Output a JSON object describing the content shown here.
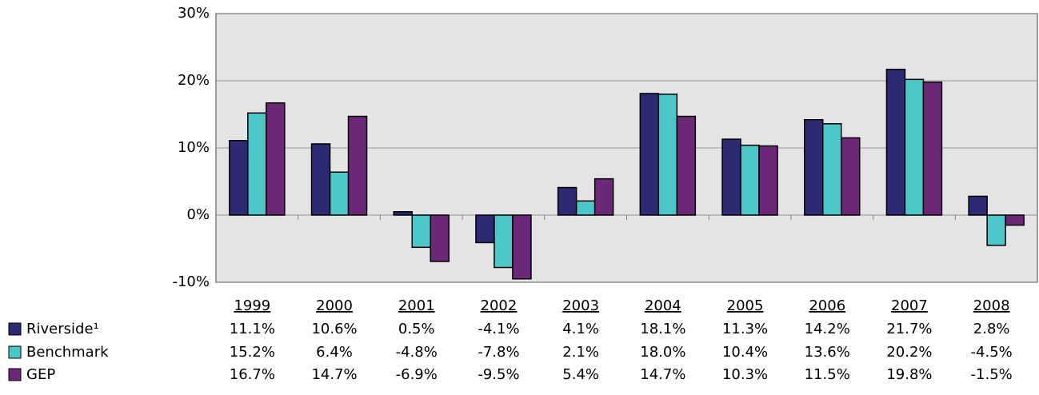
{
  "chart_data": {
    "type": "bar",
    "categories": [
      "1999",
      "2000",
      "2001",
      "2002",
      "2003",
      "2004",
      "2005",
      "2006",
      "2007",
      "2008"
    ],
    "series": [
      {
        "name": "Riverside¹",
        "color": "#2b2a72",
        "values": [
          11.1,
          10.6,
          0.5,
          -4.1,
          4.1,
          18.1,
          11.3,
          14.2,
          21.7,
          2.8
        ],
        "value_labels": [
          "11.1%",
          "10.6%",
          "0.5%",
          "-4.1%",
          "4.1%",
          "18.1%",
          "11.3%",
          "14.2%",
          "21.7%",
          "2.8%"
        ]
      },
      {
        "name": "Benchmark",
        "color": "#4cc6c8",
        "values": [
          15.2,
          6.4,
          -4.8,
          -7.8,
          2.1,
          18.0,
          10.4,
          13.6,
          20.2,
          -4.5
        ],
        "value_labels": [
          "15.2%",
          "6.4%",
          "-4.8%",
          "-7.8%",
          "2.1%",
          "18.0%",
          "10.4%",
          "13.6%",
          "20.2%",
          "-4.5%"
        ]
      },
      {
        "name": "GEP",
        "color": "#6b2877",
        "values": [
          16.7,
          14.7,
          -6.9,
          -9.5,
          5.4,
          14.7,
          10.3,
          11.5,
          19.8,
          -1.5
        ],
        "value_labels": [
          "16.7%",
          "14.7%",
          "-6.9%",
          "-9.5%",
          "5.4%",
          "14.7%",
          "10.3%",
          "11.5%",
          "19.8%",
          "-1.5%"
        ]
      }
    ],
    "ylim": [
      -10,
      30
    ],
    "yticks": [
      {
        "value": -10,
        "label": "-10%"
      },
      {
        "value": 0,
        "label": "0%"
      },
      {
        "value": 10,
        "label": "10%"
      },
      {
        "value": 20,
        "label": "20%"
      },
      {
        "value": 30,
        "label": "30%"
      }
    ],
    "grid": true
  }
}
